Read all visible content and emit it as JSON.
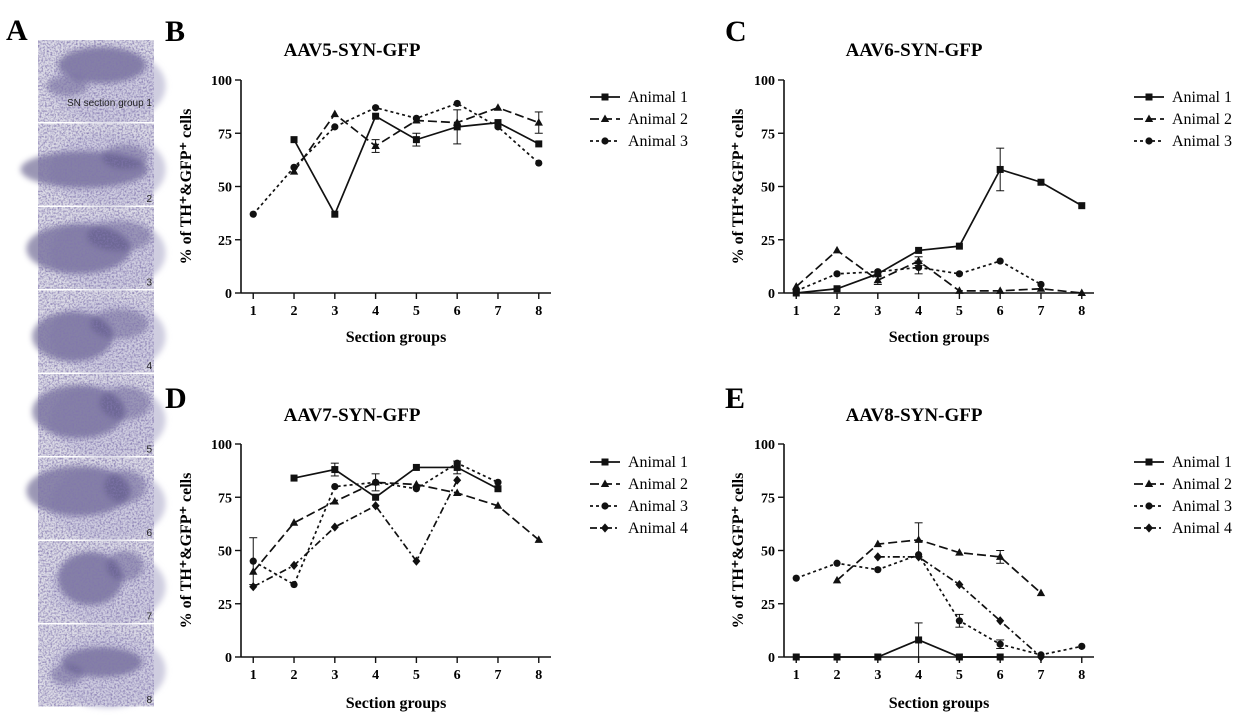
{
  "panel_a": {
    "letter": "A",
    "first_label": "SN section group 1",
    "labels": [
      "2",
      "3",
      "4",
      "5",
      "6",
      "7",
      "8"
    ]
  },
  "chart_data": [
    {
      "panel": "B",
      "type": "line",
      "title": "AAV5-SYN-GFP",
      "xlabel": "Section groups",
      "ylabel": "% of TH⁺&GFP⁺ cells",
      "x": [
        1,
        2,
        3,
        4,
        5,
        6,
        7,
        8
      ],
      "xlim": [
        0.7,
        8.3
      ],
      "ylim": [
        0,
        100
      ],
      "yticks": [
        0,
        25,
        50,
        75,
        100
      ],
      "legend": "right",
      "series": [
        {
          "name": "Animal 1",
          "marker": "square",
          "dash": "solid",
          "values": [
            null,
            72,
            37,
            83,
            72,
            78,
            80,
            70
          ],
          "err": [
            0,
            0,
            0,
            0,
            3,
            8,
            0,
            0
          ]
        },
        {
          "name": "Animal 2",
          "marker": "triangle",
          "dash": "long",
          "values": [
            null,
            57,
            84,
            69,
            81,
            80,
            87,
            80
          ],
          "err": [
            0,
            0,
            0,
            3,
            0,
            0,
            0,
            5
          ]
        },
        {
          "name": "Animal 3",
          "marker": "circle",
          "dash": "short",
          "values": [
            37,
            59,
            78,
            87,
            82,
            89,
            78,
            61
          ],
          "err": [
            0,
            0,
            0,
            0,
            0,
            0,
            0,
            0
          ]
        }
      ]
    },
    {
      "panel": "C",
      "type": "line",
      "title": "AAV6-SYN-GFP",
      "xlabel": "Section groups",
      "ylabel": "% of TH⁺&GFP⁺ cells",
      "x": [
        1,
        2,
        3,
        4,
        5,
        6,
        7,
        8
      ],
      "xlim": [
        0.7,
        8.3
      ],
      "ylim": [
        0,
        100
      ],
      "yticks": [
        0,
        25,
        50,
        75,
        100
      ],
      "legend": "right",
      "series": [
        {
          "name": "Animal 1",
          "marker": "square",
          "dash": "solid",
          "values": [
            0,
            2,
            9,
            20,
            22,
            58,
            52,
            41
          ],
          "err": [
            0,
            0,
            0,
            0,
            0,
            10,
            0,
            0
          ]
        },
        {
          "name": "Animal 2",
          "marker": "triangle",
          "dash": "long",
          "values": [
            3,
            20,
            6,
            15,
            1,
            1,
            2,
            0
          ],
          "err": [
            0,
            0,
            2,
            2,
            0,
            0,
            0,
            0
          ]
        },
        {
          "name": "Animal 3",
          "marker": "circle",
          "dash": "short",
          "values": [
            1,
            9,
            10,
            12,
            9,
            15,
            4,
            null
          ],
          "err": [
            0,
            0,
            0,
            3,
            0,
            0,
            0,
            0
          ]
        }
      ]
    },
    {
      "panel": "D",
      "type": "line",
      "title": "AAV7-SYN-GFP",
      "xlabel": "Section groups",
      "ylabel": "% of TH⁺&GFP⁺ cells",
      "x": [
        1,
        2,
        3,
        4,
        5,
        6,
        7,
        8
      ],
      "xlim": [
        0.7,
        8.3
      ],
      "ylim": [
        0,
        100
      ],
      "yticks": [
        0,
        25,
        50,
        75,
        100
      ],
      "legend": "right",
      "series": [
        {
          "name": "Animal 1",
          "marker": "square",
          "dash": "solid",
          "values": [
            null,
            84,
            88,
            75,
            89,
            89,
            79,
            null
          ],
          "err": [
            0,
            0,
            3,
            0,
            0,
            3,
            0,
            0
          ]
        },
        {
          "name": "Animal 2",
          "marker": "triangle",
          "dash": "long",
          "values": [
            40,
            63,
            73,
            82,
            81,
            77,
            71,
            55
          ],
          "err": [
            0,
            0,
            0,
            4,
            0,
            0,
            0,
            0
          ]
        },
        {
          "name": "Animal 3",
          "marker": "circle",
          "dash": "short",
          "values": [
            45,
            34,
            80,
            82,
            79,
            91,
            82,
            null
          ],
          "err": [
            11,
            0,
            0,
            0,
            0,
            0,
            0,
            0
          ]
        },
        {
          "name": "Animal 4",
          "marker": "diamond",
          "dash": "dashdot",
          "values": [
            33,
            43,
            61,
            71,
            45,
            83,
            null,
            null
          ],
          "err": [
            0,
            0,
            0,
            0,
            0,
            0,
            0,
            0
          ]
        }
      ]
    },
    {
      "panel": "E",
      "type": "line",
      "title": "AAV8-SYN-GFP",
      "xlabel": "Section groups",
      "ylabel": "% of TH⁺&GFP⁺ cells",
      "x": [
        1,
        2,
        3,
        4,
        5,
        6,
        7,
        8
      ],
      "xlim": [
        0.7,
        8.3
      ],
      "ylim": [
        0,
        100
      ],
      "yticks": [
        0,
        25,
        50,
        75,
        100
      ],
      "legend": "right",
      "series": [
        {
          "name": "Animal 1",
          "marker": "square",
          "dash": "solid",
          "values": [
            0,
            0,
            0,
            8,
            0,
            0,
            null,
            null
          ],
          "err": [
            0,
            0,
            0,
            8,
            0,
            0,
            0,
            0
          ]
        },
        {
          "name": "Animal 2",
          "marker": "triangle",
          "dash": "long",
          "values": [
            null,
            36,
            53,
            55,
            49,
            47,
            30,
            null
          ],
          "err": [
            0,
            0,
            0,
            8,
            0,
            3,
            0,
            0
          ]
        },
        {
          "name": "Animal 3",
          "marker": "circle",
          "dash": "short",
          "values": [
            37,
            44,
            41,
            48,
            17,
            6,
            1,
            5
          ],
          "err": [
            0,
            0,
            0,
            0,
            3,
            2,
            0,
            0
          ]
        },
        {
          "name": "Animal 4",
          "marker": "diamond",
          "dash": "dashdot",
          "values": [
            null,
            null,
            47,
            47,
            34,
            17,
            0,
            null
          ],
          "err": [
            0,
            0,
            0,
            0,
            0,
            0,
            0,
            0
          ]
        }
      ]
    }
  ]
}
